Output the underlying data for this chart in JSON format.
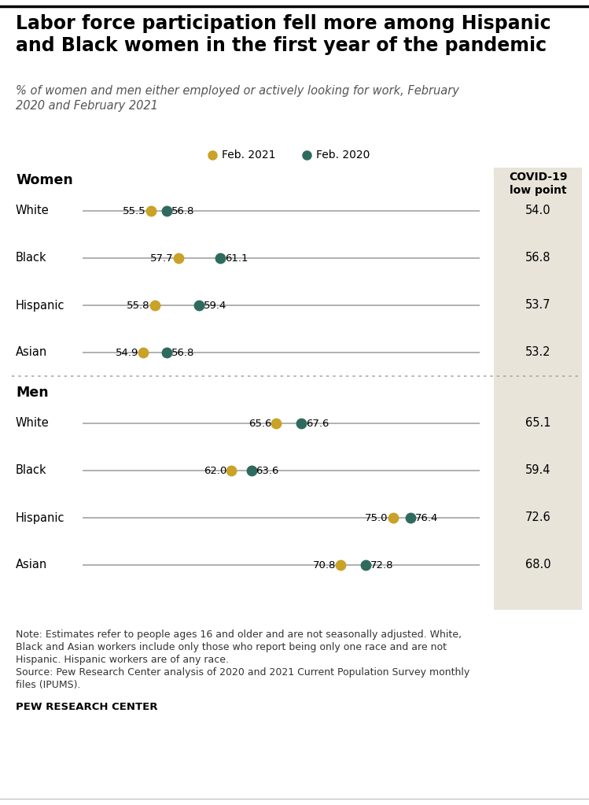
{
  "title": "Labor force participation fell more among Hispanic\nand Black women in the first year of the pandemic",
  "subtitle": "% of women and men either employed or actively looking for work, February\n2020 and February 2021",
  "legend_labels": [
    "Feb. 2021",
    "Feb. 2020"
  ],
  "color_2021": "#C9A227",
  "color_2020": "#2E6B5E",
  "line_color": "#AAAAAA",
  "covid_bg_color": "#E8E4DA",
  "women": {
    "label": "Women",
    "rows": [
      {
        "category": "White",
        "val2021": 55.5,
        "val2020": 56.8,
        "covid": 54.0
      },
      {
        "category": "Black",
        "val2021": 57.7,
        "val2020": 61.1,
        "covid": 56.8
      },
      {
        "category": "Hispanic",
        "val2021": 55.8,
        "val2020": 59.4,
        "covid": 53.7
      },
      {
        "category": "Asian",
        "val2021": 54.9,
        "val2020": 56.8,
        "covid": 53.2
      }
    ]
  },
  "men": {
    "label": "Men",
    "rows": [
      {
        "category": "White",
        "val2021": 65.6,
        "val2020": 67.6,
        "covid": 65.1
      },
      {
        "category": "Black",
        "val2021": 62.0,
        "val2020": 63.6,
        "covid": 59.4
      },
      {
        "category": "Hispanic",
        "val2021": 75.0,
        "val2020": 76.4,
        "covid": 72.6
      },
      {
        "category": "Asian",
        "val2021": 70.8,
        "val2020": 72.8,
        "covid": 68.0
      }
    ]
  },
  "x_min": 50,
  "x_max": 82,
  "note1": "Note: Estimates refer to people ages 16 and older and are not seasonally adjusted. White,",
  "note2": "Black and Asian workers include only those who report being only one race and are not",
  "note3": "Hispanic. Hispanic workers are of any race.",
  "note4": "Source: Pew Research Center analysis of 2020 and 2021 Current Population Survey monthly",
  "note5": "files (IPUMS).",
  "source_label": "PEW RESEARCH CENTER"
}
